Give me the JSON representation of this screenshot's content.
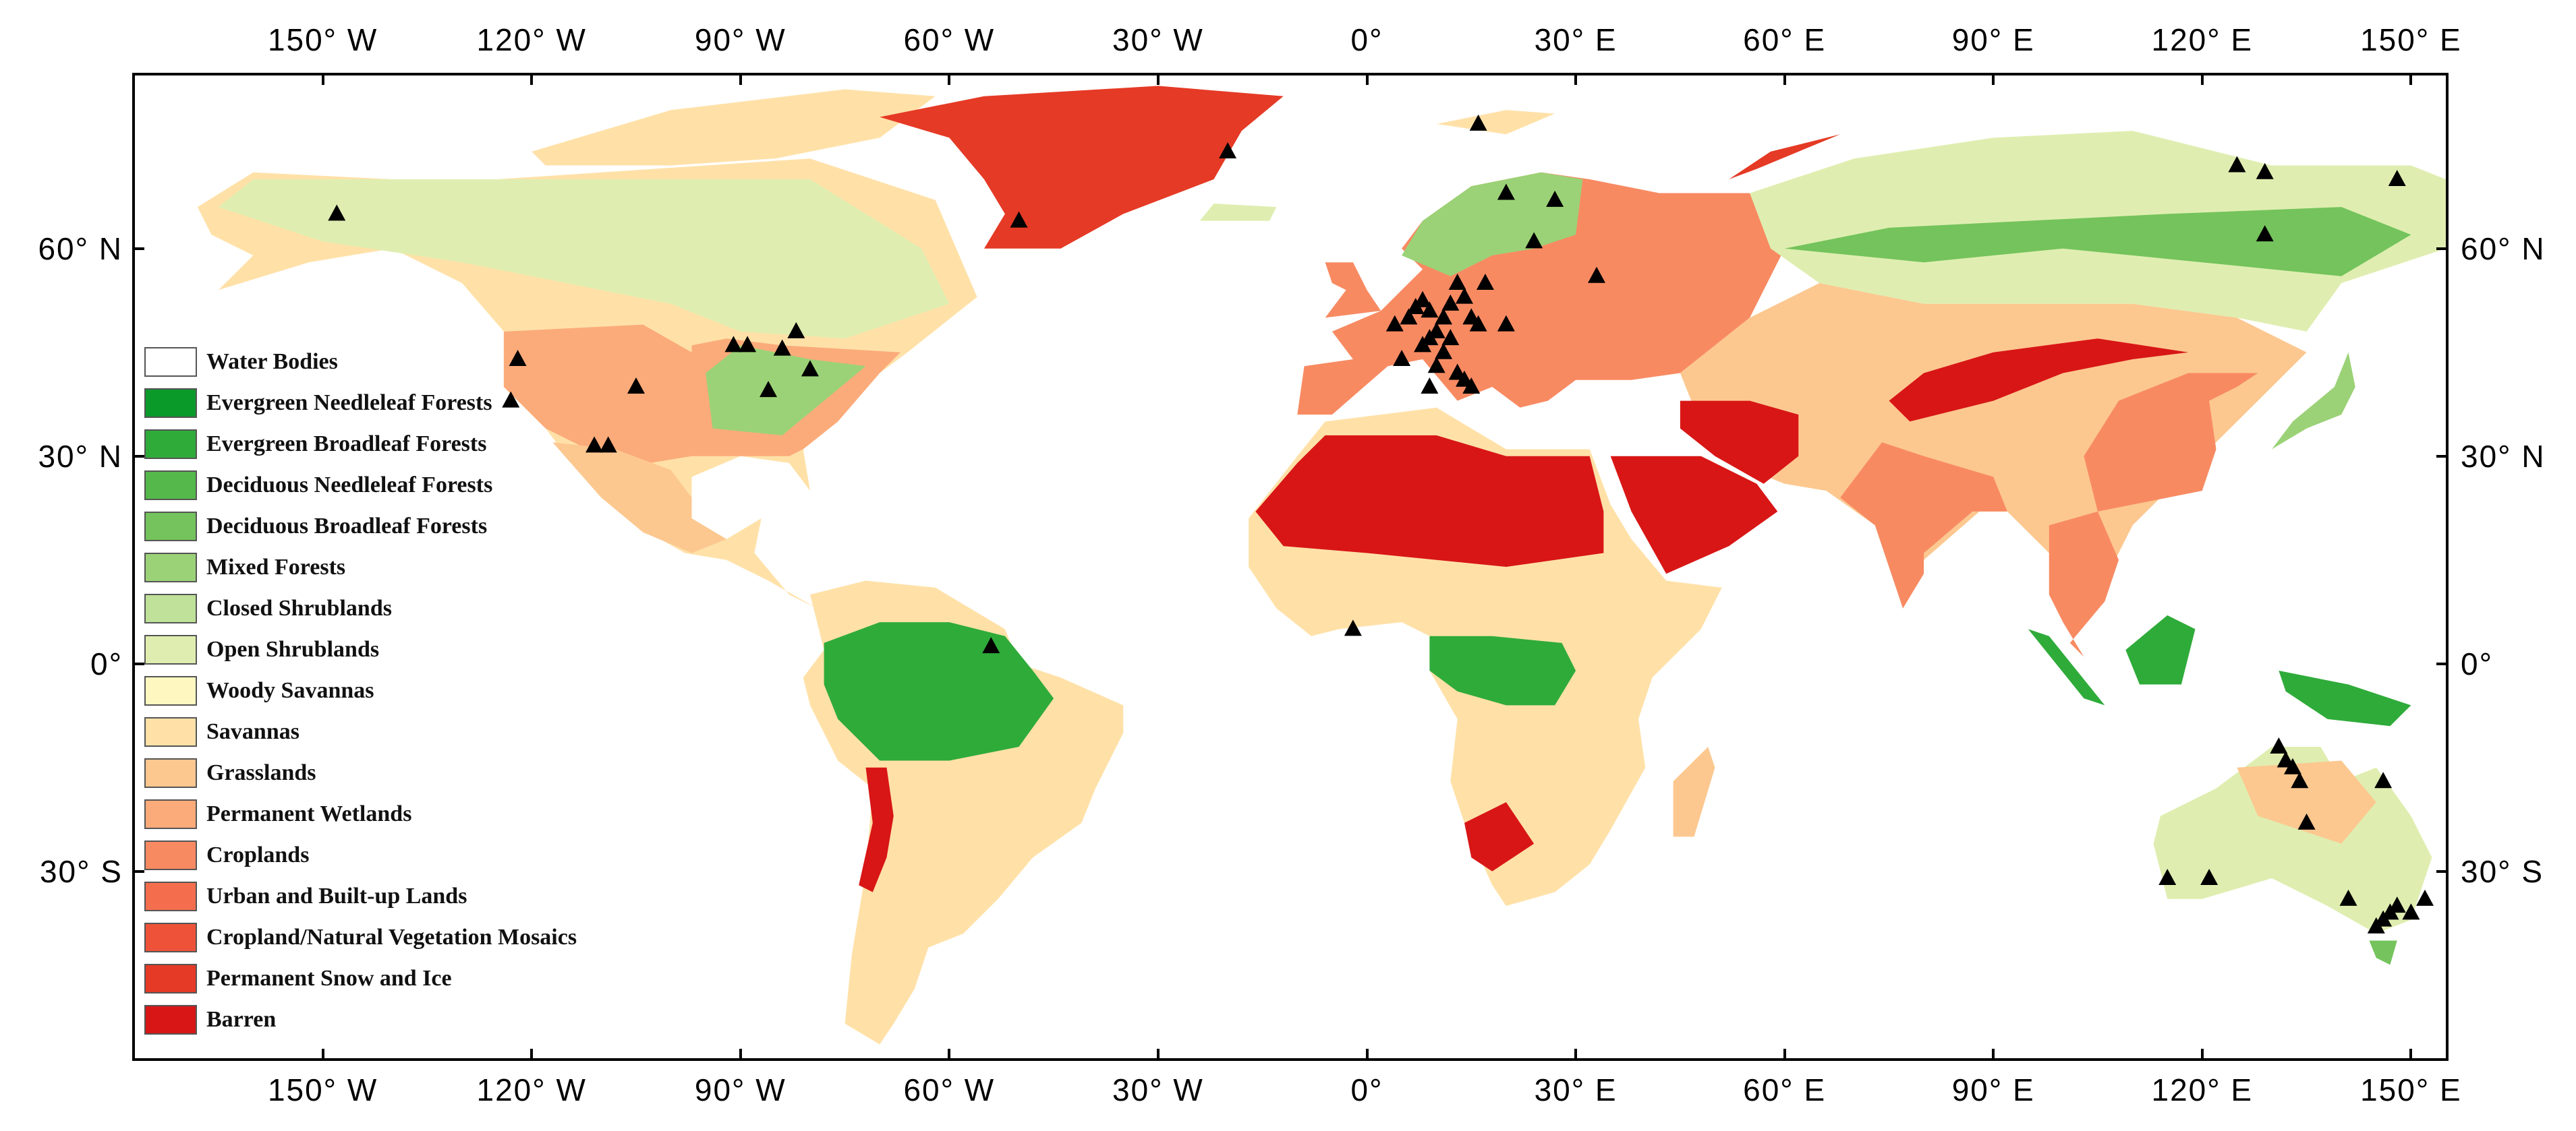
{
  "map": {
    "lon_labels": [
      "150° W",
      "120° W",
      "90° W",
      "60° W",
      "30° W",
      "0°",
      "30° E",
      "60° E",
      "90° E",
      "120° E",
      "150° E"
    ],
    "lon_values": [
      -150,
      -120,
      -90,
      -60,
      -30,
      0,
      30,
      60,
      90,
      120,
      150
    ],
    "lat_labels": [
      "60° N",
      "30° N",
      "0°",
      "30° S"
    ],
    "lat_values": [
      60,
      30,
      0,
      -30
    ],
    "lon_range": [
      -177,
      155
    ],
    "lat_range": [
      -57,
      85
    ],
    "legend": {
      "items": [
        {
          "label": "Water Bodies",
          "color": "#ffffff"
        },
        {
          "label": "Evergreen Needleleaf Forests",
          "color": "#0a9a2a"
        },
        {
          "label": "Evergreen Broadleaf Forests",
          "color": "#2fab3a"
        },
        {
          "label": "Deciduous Needleleaf Forests",
          "color": "#55b84a"
        },
        {
          "label": "Deciduous Broadleaf Forests",
          "color": "#74c35c"
        },
        {
          "label": "Mixed Forests",
          "color": "#9bd277"
        },
        {
          "label": "Closed Shrublands",
          "color": "#bfe199"
        },
        {
          "label": "Open Shrublands",
          "color": "#dfeeb0"
        },
        {
          "label": "Woody Savannas",
          "color": "#fff7c0"
        },
        {
          "label": "Savannas",
          "color": "#ffe1a8"
        },
        {
          "label": "Grasslands",
          "color": "#fcc890"
        },
        {
          "label": "Permanent Wetlands",
          "color": "#fbab7a"
        },
        {
          "label": "Croplands",
          "color": "#f88a62"
        },
        {
          "label": "Urban and Built-up Lands",
          "color": "#f46e4e"
        },
        {
          "label": "Cropland/Natural Vegetation Mosaics",
          "color": "#ee5238"
        },
        {
          "label": "Permanent Snow and Ice",
          "color": "#e53a25"
        },
        {
          "label": "Barren",
          "color": "#d81616"
        }
      ]
    },
    "sites": [
      [
        -148,
        65
      ],
      [
        -122,
        44
      ],
      [
        -123,
        38
      ],
      [
        -111,
        31.5
      ],
      [
        -109,
        31.5
      ],
      [
        -105,
        40
      ],
      [
        -91,
        46
      ],
      [
        -89,
        46
      ],
      [
        -84,
        45.5
      ],
      [
        -86,
        39.5
      ],
      [
        -82,
        48
      ],
      [
        -80,
        42.5
      ],
      [
        -54,
        2.5
      ],
      [
        -50,
        64
      ],
      [
        -20,
        74
      ],
      [
        -2,
        5
      ],
      [
        4,
        49
      ],
      [
        5,
        44
      ],
      [
        6,
        50
      ],
      [
        7,
        51.5
      ],
      [
        8,
        52.5
      ],
      [
        9,
        51
      ],
      [
        10,
        48
      ],
      [
        11,
        50
      ],
      [
        12,
        52
      ],
      [
        13,
        55
      ],
      [
        14,
        53
      ],
      [
        15,
        50
      ],
      [
        16,
        49
      ],
      [
        8,
        46
      ],
      [
        9,
        47
      ],
      [
        11,
        45
      ],
      [
        13,
        42
      ],
      [
        14,
        41
      ],
      [
        15,
        40
      ],
      [
        10,
        43
      ],
      [
        17,
        55
      ],
      [
        20,
        49
      ],
      [
        12,
        47
      ],
      [
        9,
        40
      ],
      [
        16,
        78
      ],
      [
        20,
        68
      ],
      [
        24,
        61
      ],
      [
        27,
        67
      ],
      [
        33,
        56
      ],
      [
        125,
        72
      ],
      [
        129,
        71
      ],
      [
        148,
        70
      ],
      [
        129,
        62
      ],
      [
        131,
        -12
      ],
      [
        132,
        -14
      ],
      [
        133,
        -15
      ],
      [
        134,
        -17
      ],
      [
        135,
        -23
      ],
      [
        146,
        -17
      ],
      [
        115,
        -31
      ],
      [
        121,
        -31
      ],
      [
        141,
        -34
      ],
      [
        145,
        -38
      ],
      [
        146,
        -37
      ],
      [
        147,
        -36
      ],
      [
        148,
        -35
      ],
      [
        150,
        -36
      ],
      [
        152,
        -34
      ]
    ]
  }
}
